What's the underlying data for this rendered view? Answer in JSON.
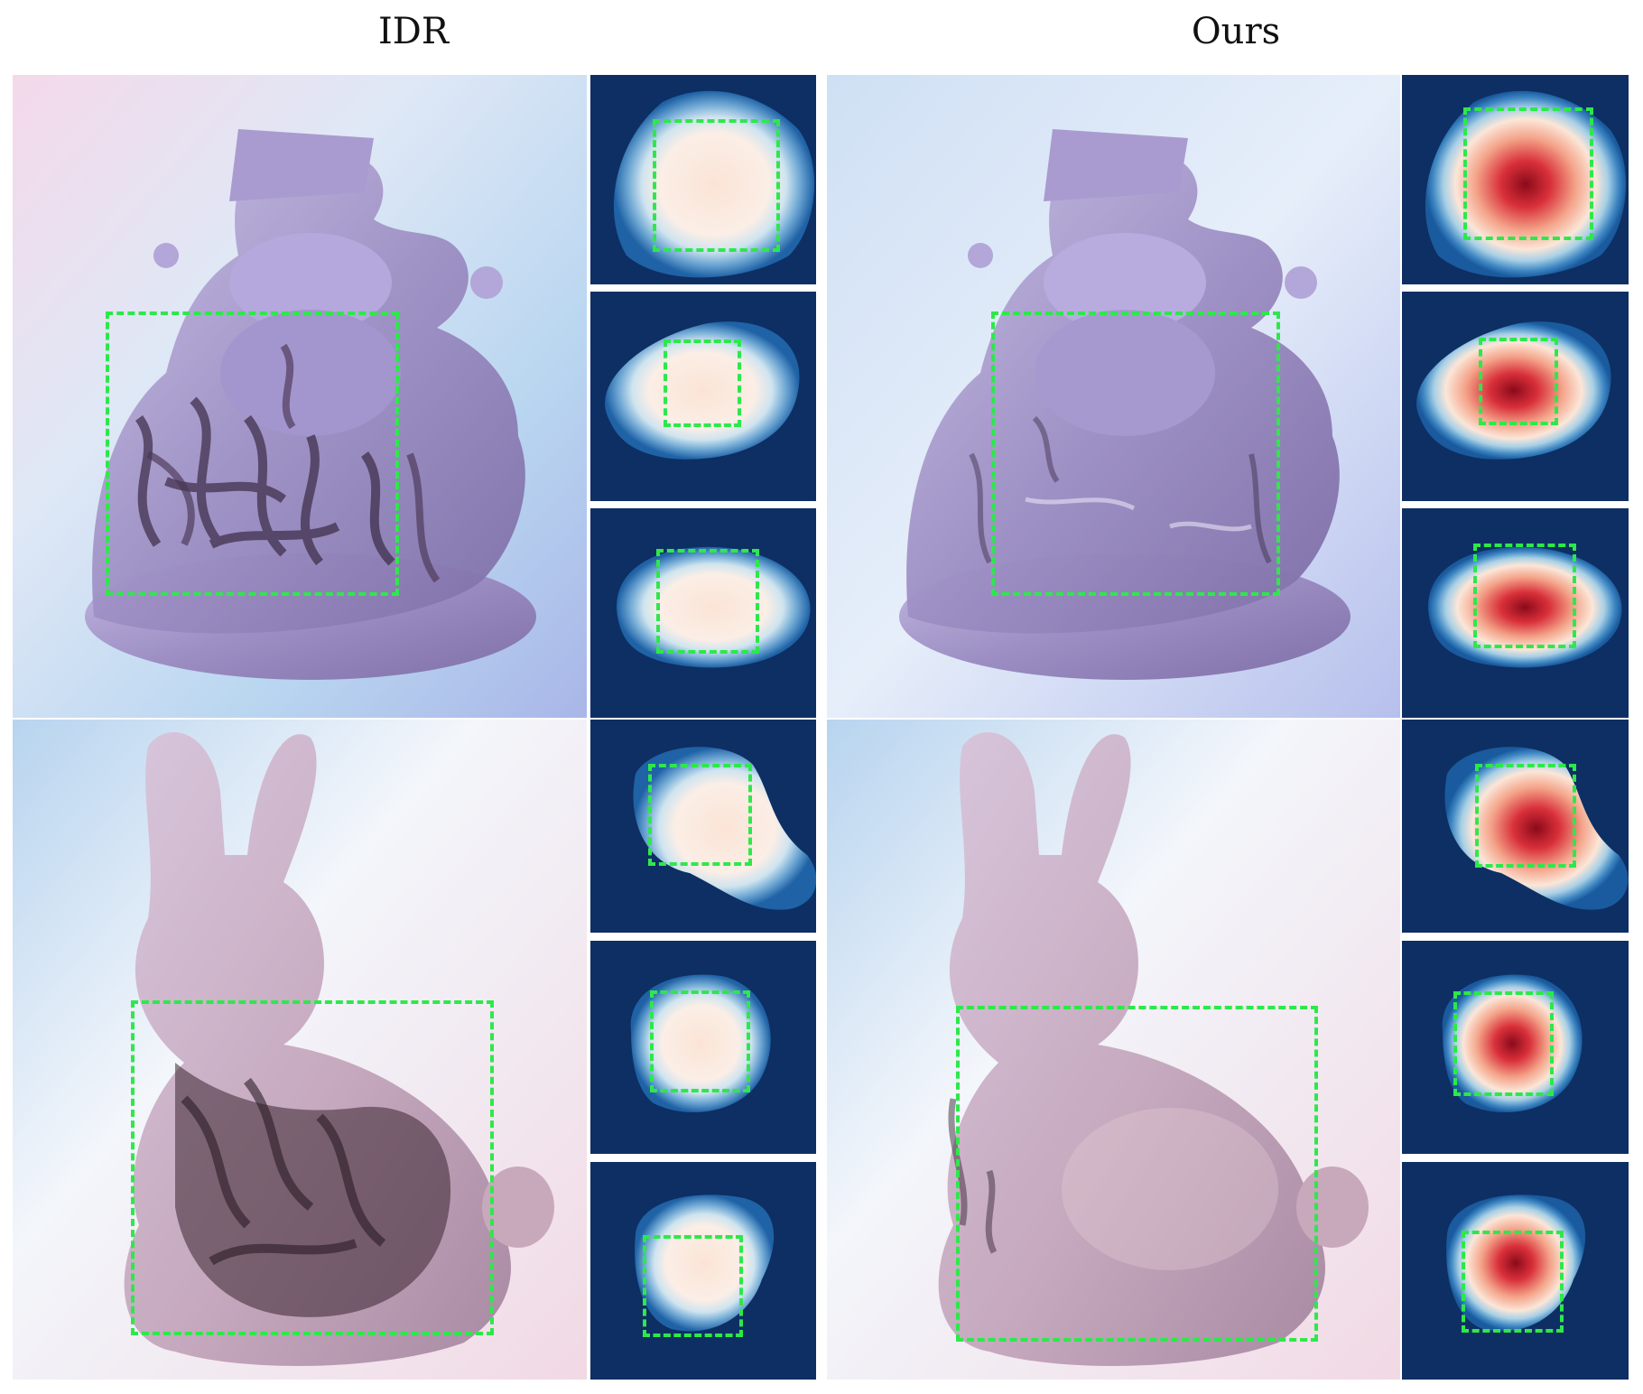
{
  "columns": {
    "left_title": "IDR",
    "right_title": "Ours"
  },
  "colors": {
    "highlight_box": "#2ee84b",
    "heatmap_background": "#0e2f63"
  }
}
